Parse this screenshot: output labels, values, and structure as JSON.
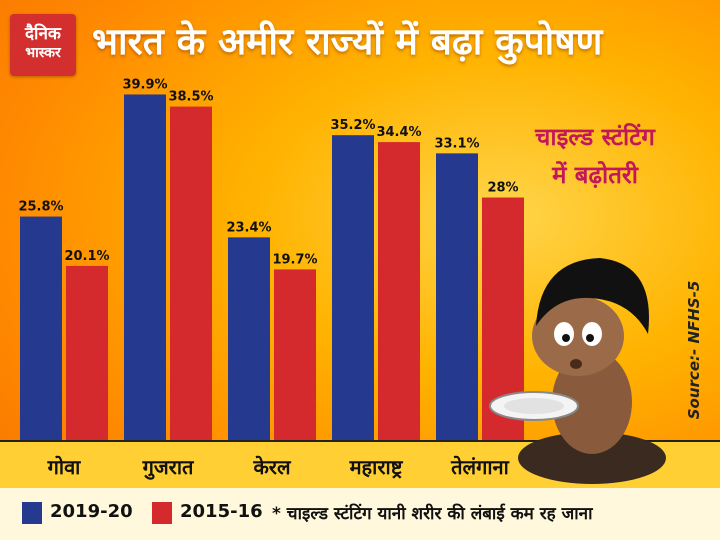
{
  "header": {
    "logo_line1": "दैनिक",
    "logo_line2": "भास्कर",
    "title": "भारत के अमीर राज्यों में बढ़ा कुपोषण"
  },
  "callout": {
    "line1": "चाइल्ड स्टंटिंग",
    "line2": "में बढ़ोतरी"
  },
  "source": "Source:- NFHS-5",
  "legend": {
    "series1": "2019-20",
    "series2": "2015-16",
    "note": "* चाइल्ड स्टंटिंग यानी शरीर की लंबाई कम रह जाना"
  },
  "colors": {
    "series1": "#253a8e",
    "series2": "#d42a2e",
    "axis_band": "#ffcf33"
  },
  "chart_data": {
    "type": "bar",
    "title": "भारत के अमीर राज्यों में बढ़ा कुपोषण",
    "categories": [
      "गोवा",
      "गुजरात",
      "केरल",
      "महाराष्ट्र",
      "तेलंगाना"
    ],
    "series": [
      {
        "name": "2019-20",
        "values": [
          25.8,
          39.9,
          23.4,
          35.2,
          33.1
        ],
        "labels": [
          "25.8%",
          "39.9%",
          "23.4%",
          "35.2%",
          "33.1%"
        ]
      },
      {
        "name": "2015-16",
        "values": [
          20.1,
          38.5,
          19.7,
          34.4,
          28.0
        ],
        "labels": [
          "20.1%",
          "38.5%",
          "19.7%",
          "34.4%",
          "28%"
        ]
      }
    ],
    "ylim": [
      0,
      40
    ],
    "grid": false,
    "legend": "bottom-left"
  }
}
